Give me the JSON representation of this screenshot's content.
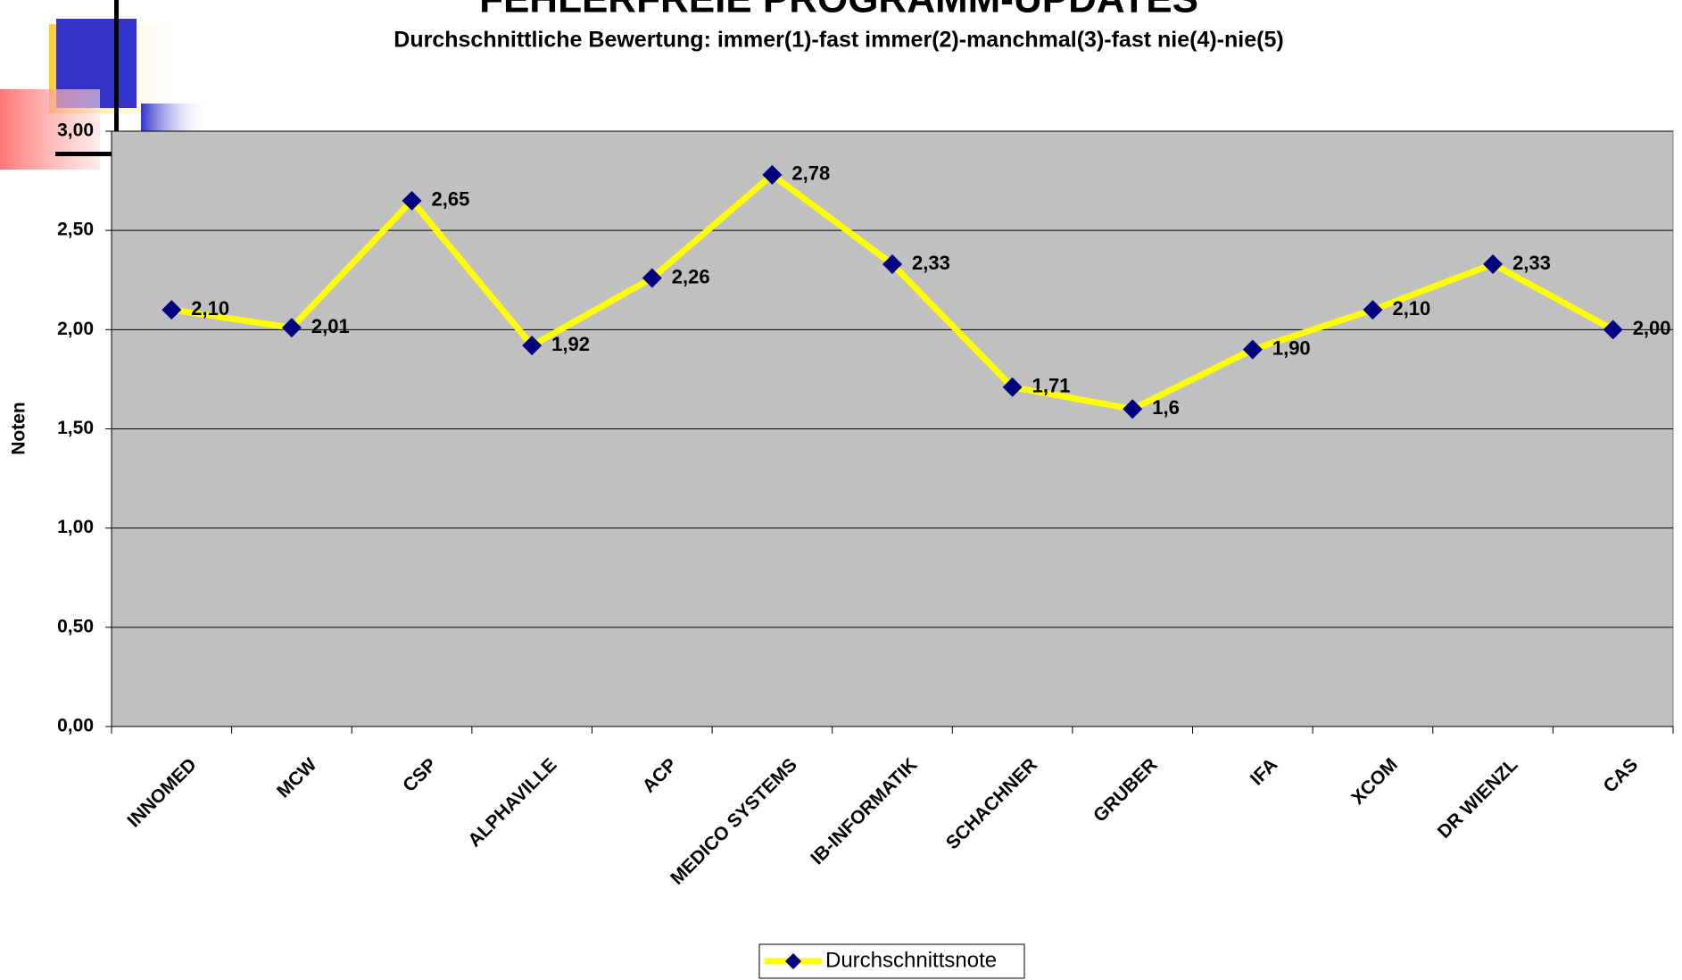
{
  "chart_data": {
    "type": "line",
    "title": "FEHLERFREIE PROGRAMM-UPDATES",
    "subtitle": "Durchschnittliche Bewertung: immer(1)-fast immer(2)-manchmal(3)-fast nie(4)-nie(5)",
    "y_label": "Noten",
    "categories": [
      "INNOMED",
      "MCW",
      "CSP",
      "ALPHAVILLE",
      "ACP",
      "MEDICO SYSTEMS",
      "IB-INFORMATIK",
      "SCHACHNER",
      "GRUBER",
      "IFA",
      "XCOM",
      "DR WIENZL",
      "CAS"
    ],
    "series": [
      {
        "name": "Durchschnittsnote",
        "color": "#ffff00",
        "marker_color": "#000080",
        "values": [
          2.1,
          2.01,
          2.65,
          1.92,
          2.26,
          2.78,
          2.33,
          1.71,
          1.6,
          1.9,
          2.1,
          2.33,
          2.0
        ],
        "value_labels": [
          "2,10",
          "2,01",
          "2,65",
          "1,92",
          "2,26",
          "2,78",
          "2,33",
          "1,71",
          "1,6",
          "1,90",
          "2,10",
          "2,33",
          "2,00"
        ]
      }
    ],
    "ylim": [
      0,
      3
    ],
    "yticks": [
      {
        "value": 0,
        "label": "0,00"
      },
      {
        "value": 0.5,
        "label": "0,50"
      },
      {
        "value": 1,
        "label": "1,00"
      },
      {
        "value": 1.5,
        "label": "1,50"
      },
      {
        "value": 2,
        "label": "2,00"
      },
      {
        "value": 2.5,
        "label": "2,50"
      },
      {
        "value": 3,
        "label": "3,00"
      }
    ],
    "grid": true,
    "legend": "bottom"
  }
}
